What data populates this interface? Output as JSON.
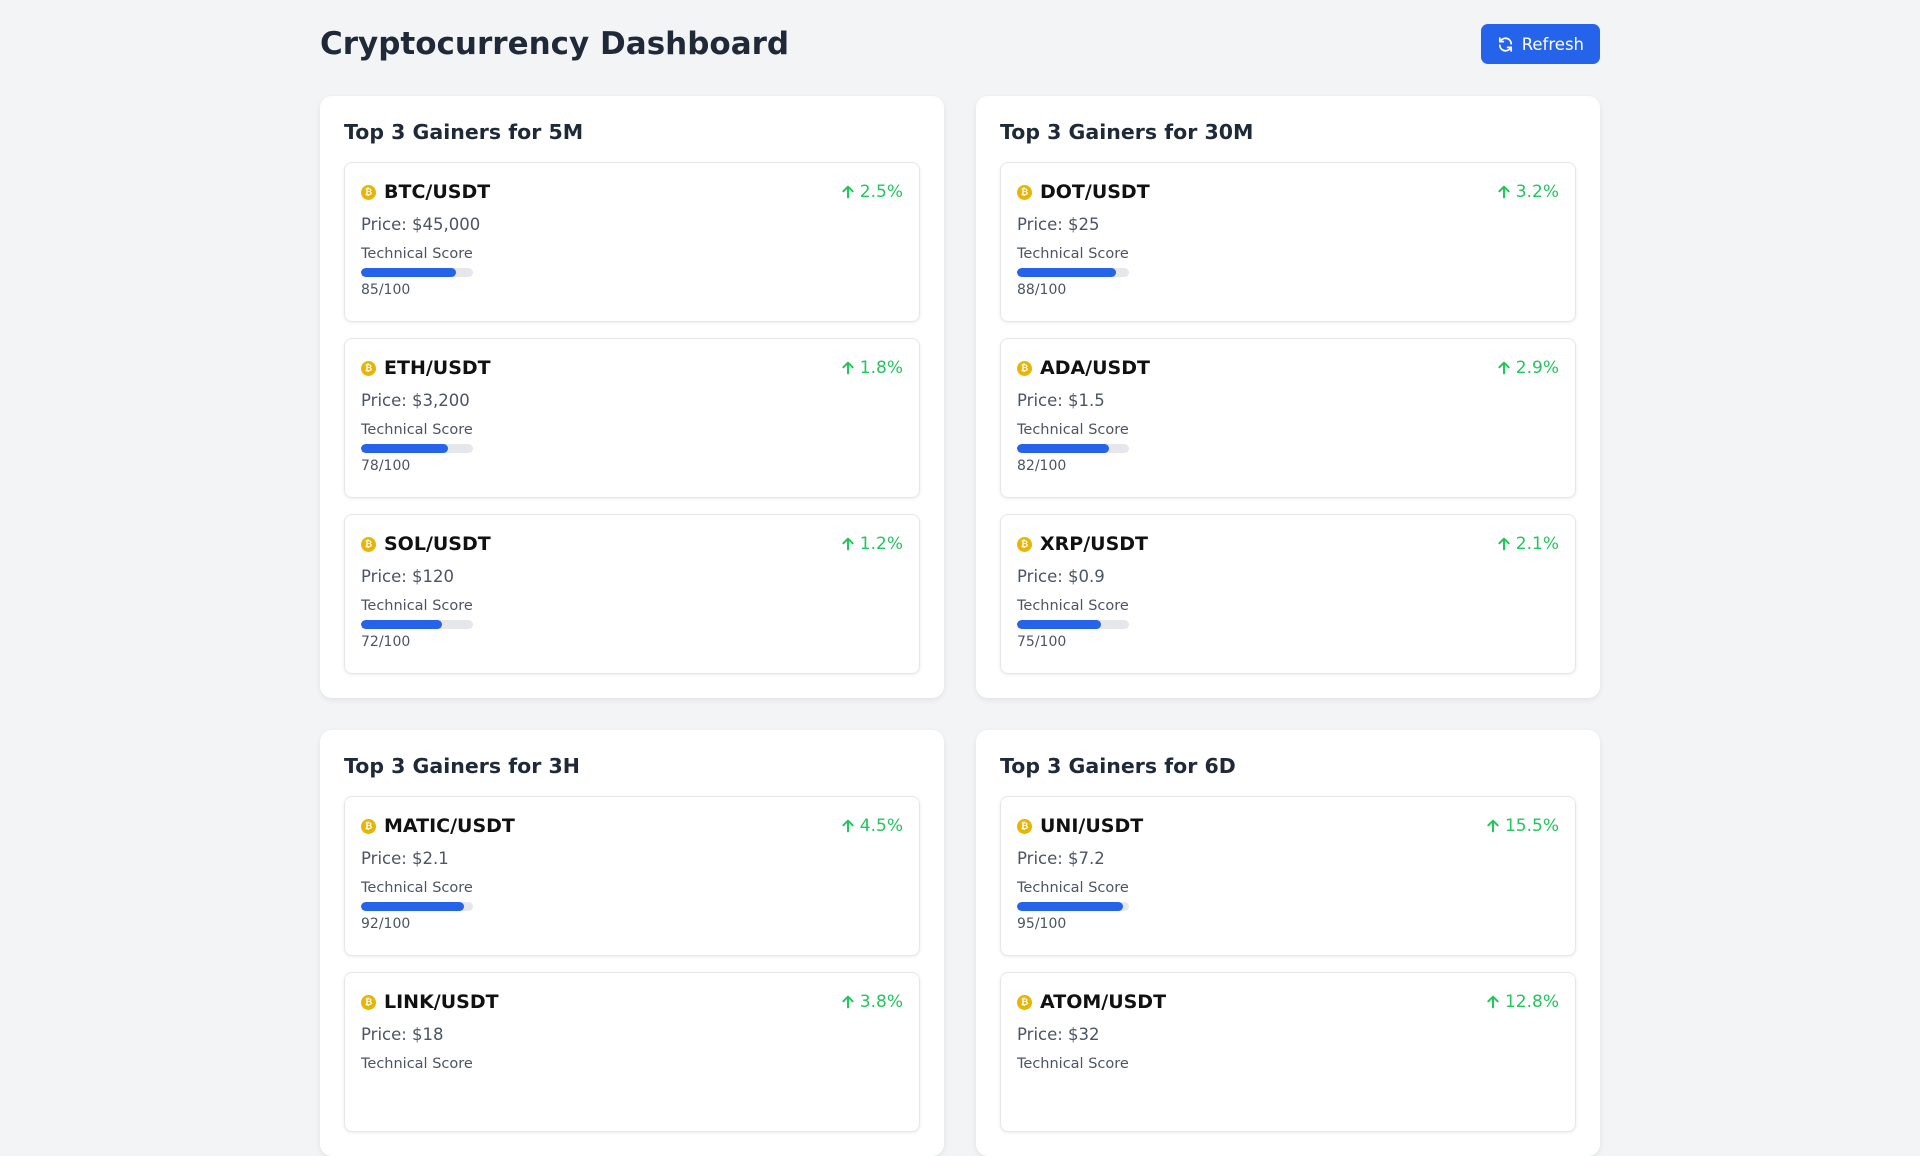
{
  "title": "Cryptocurrency Dashboard",
  "refresh_label": "Refresh",
  "colors": {
    "accent": "#2563eb",
    "gain": "#22c55e",
    "coin": "#eab308"
  },
  "labels": {
    "technical_score": "Technical Score"
  },
  "panels": [
    {
      "title": "Top 3 Gainers for 5M",
      "items": [
        {
          "symbol": "BTC/USDT",
          "change": "2.5%",
          "price": "Price: $45,000",
          "score": 85,
          "score_text": "85/100"
        },
        {
          "symbol": "ETH/USDT",
          "change": "1.8%",
          "price": "Price: $3,200",
          "score": 78,
          "score_text": "78/100"
        },
        {
          "symbol": "SOL/USDT",
          "change": "1.2%",
          "price": "Price: $120",
          "score": 72,
          "score_text": "72/100"
        }
      ]
    },
    {
      "title": "Top 3 Gainers for 30M",
      "items": [
        {
          "symbol": "DOT/USDT",
          "change": "3.2%",
          "price": "Price: $25",
          "score": 88,
          "score_text": "88/100"
        },
        {
          "symbol": "ADA/USDT",
          "change": "2.9%",
          "price": "Price: $1.5",
          "score": 82,
          "score_text": "82/100"
        },
        {
          "symbol": "XRP/USDT",
          "change": "2.1%",
          "price": "Price: $0.9",
          "score": 75,
          "score_text": "75/100"
        }
      ]
    },
    {
      "title": "Top 3 Gainers for 3H",
      "items": [
        {
          "symbol": "MATIC/USDT",
          "change": "4.5%",
          "price": "Price: $2.1",
          "score": 92,
          "score_text": "92/100"
        },
        {
          "symbol": "LINK/USDT",
          "change": "3.8%",
          "price": "Price: $18"
        }
      ]
    },
    {
      "title": "Top 3 Gainers for 6D",
      "items": [
        {
          "symbol": "UNI/USDT",
          "change": "15.5%",
          "price": "Price: $7.2",
          "score": 95,
          "score_text": "95/100"
        },
        {
          "symbol": "ATOM/USDT",
          "change": "12.8%",
          "price": "Price: $32"
        }
      ]
    }
  ]
}
